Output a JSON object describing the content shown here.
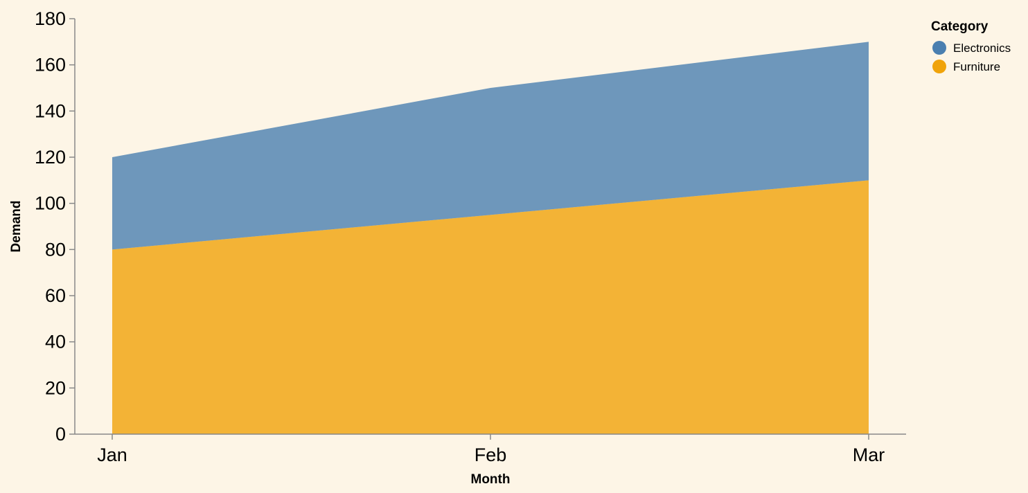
{
  "chart_data": {
    "type": "area",
    "stacked": true,
    "categories": [
      "Jan",
      "Feb",
      "Mar"
    ],
    "series": [
      {
        "name": "Furniture",
        "values": [
          80,
          95,
          110
        ],
        "color": "#f0a30a"
      },
      {
        "name": "Electronics",
        "values": [
          40,
          55,
          60
        ],
        "color": "#4a7fb0"
      }
    ],
    "xlabel": "Month",
    "ylabel": "Demand",
    "ylim": [
      0,
      180
    ],
    "yticks": [
      0,
      20,
      40,
      60,
      80,
      100,
      120,
      140,
      160,
      180
    ],
    "grid": false,
    "legend": {
      "title": "Category",
      "placement": "top-right",
      "items": [
        {
          "label": "Electronics",
          "color": "#4a7fb0"
        },
        {
          "label": "Furniture",
          "color": "#f0a30a"
        }
      ]
    },
    "background": "#fdf5e6",
    "axis_color": "#888888"
  }
}
